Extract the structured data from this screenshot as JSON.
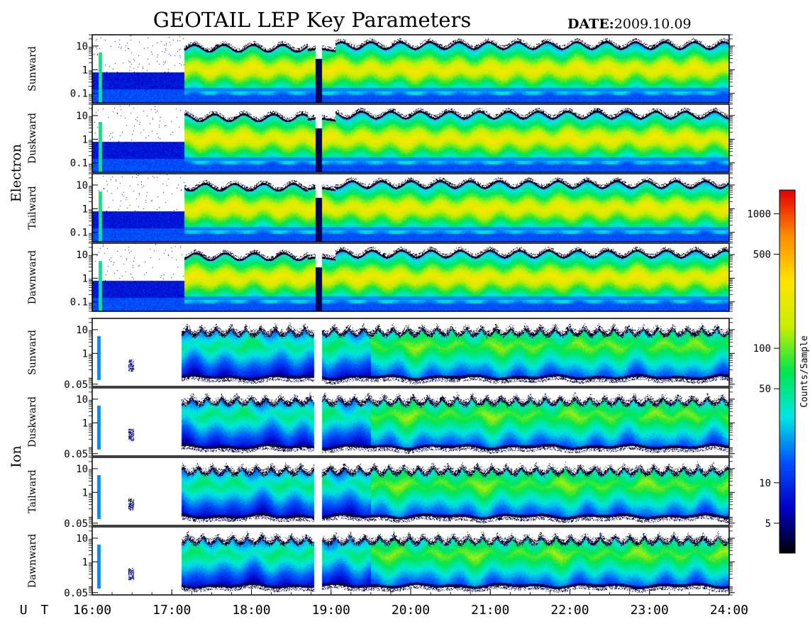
{
  "header": {
    "title": "GEOTAIL LEP Key Parameters",
    "date_label": "DATE:",
    "date_value": "2009.10.09"
  },
  "chart_data": {
    "type": "heatmap",
    "title": "GEOTAIL LEP Key Parameters",
    "date": "2009.10.09",
    "x_axis": {
      "label": "U T",
      "ticks": [
        "16:00",
        "17:00",
        "18:00",
        "19:00",
        "20:00",
        "21:00",
        "22:00",
        "23:00",
        "24:00"
      ],
      "range_hours": [
        16,
        24
      ]
    },
    "groups": [
      {
        "name": "Electron",
        "y_ticks": [
          "10",
          "1",
          "0.1"
        ],
        "y_range": [
          0.04,
          30
        ],
        "panels": [
          "Sunward",
          "Duskward",
          "Tailward",
          "Dawnward"
        ]
      },
      {
        "name": "Ion",
        "y_ticks": [
          "10",
          "1",
          "0.05"
        ],
        "y_range": [
          0.04,
          30
        ],
        "panels": [
          "Sunward",
          "Duskward",
          "Tailward",
          "Dawnward"
        ]
      }
    ],
    "colorbar": {
      "label": "Counts/Sample",
      "scale": "log",
      "range": [
        3,
        1500
      ],
      "ticks": [
        "5",
        "10",
        "50",
        "100",
        "500",
        "1000"
      ],
      "tick_values": [
        5,
        10,
        50,
        100,
        500,
        1000
      ],
      "colors": [
        "#000000",
        "#0000c8",
        "#0050ff",
        "#00e6e6",
        "#00e650",
        "#c8f000",
        "#ffe600",
        "#ff8c00",
        "#e60000"
      ]
    },
    "features": {
      "data_gap_hours": [
        18.8,
        18.88
      ],
      "electron_background_until": 17.15,
      "ion_onset": 17.12
    }
  }
}
